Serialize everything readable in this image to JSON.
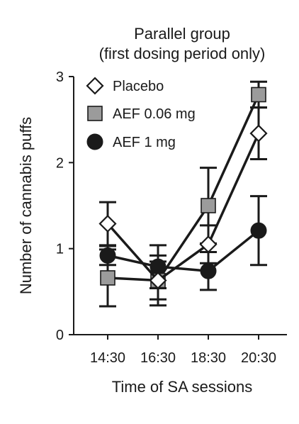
{
  "chart_data": {
    "type": "line",
    "title": [
      "Parallel group",
      "(first dosing period only)"
    ],
    "xlabel": "Time of SA sessions",
    "ylabel": "Number of cannabis puffs",
    "categories": [
      "14:30",
      "16:30",
      "18:30",
      "20:30"
    ],
    "ylim": [
      0,
      3
    ],
    "yticks": [
      0,
      1,
      2,
      3
    ],
    "legend_position": "top-left",
    "grid": false,
    "series": [
      {
        "name": "Placebo",
        "marker": "diamond",
        "fill": "#ffffff",
        "stroke": "#1a1a1a",
        "values": [
          1.29,
          0.63,
          1.05,
          2.34
        ],
        "err": [
          0.25,
          0.29,
          0.22,
          0.3
        ]
      },
      {
        "name": "AEF 0.06 mg",
        "marker": "square",
        "fill": "#9b9b9b",
        "stroke": "#1a1a1a",
        "values": [
          0.66,
          0.63,
          1.5,
          2.79
        ],
        "err": [
          0.33,
          0.22,
          0.44,
          0.15
        ]
      },
      {
        "name": "AEF 1 mg",
        "marker": "circle",
        "fill": "#1a1a1a",
        "stroke": "#1a1a1a",
        "values": [
          0.92,
          0.79,
          0.74,
          1.21
        ],
        "err": [
          0.11,
          0.25,
          0.22,
          0.4
        ]
      }
    ]
  }
}
